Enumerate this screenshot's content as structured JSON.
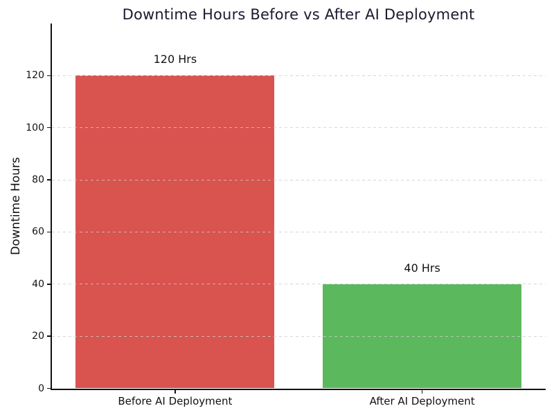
{
  "chart_data": {
    "type": "bar",
    "title": "Downtime Hours Before vs After AI Deployment",
    "xlabel": "",
    "ylabel": "Downtime Hours",
    "categories": [
      "Before AI Deployment",
      "After AI Deployment"
    ],
    "values": [
      120,
      40
    ],
    "bar_value_labels": [
      "120 Hrs",
      "40 Hrs"
    ],
    "bar_colors": [
      "#d9534f",
      "#5cb85c"
    ],
    "y_ticks": [
      0,
      20,
      40,
      60,
      80,
      100,
      120
    ],
    "ylim": [
      0,
      140
    ],
    "grid": "horizontal-dashed",
    "grid_color": "#cccccc",
    "legend": "none",
    "background_color": "#ffffff",
    "title_color": "#1a1a2e",
    "axis_color": "#111111"
  }
}
